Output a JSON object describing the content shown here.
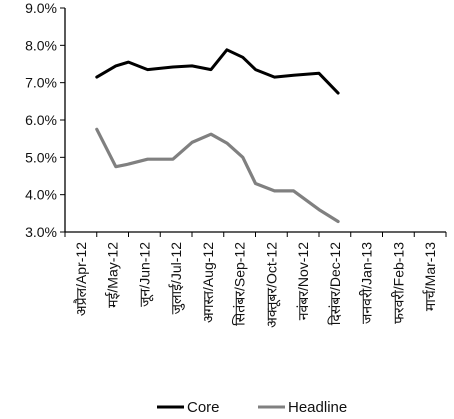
{
  "chart_data": {
    "type": "line",
    "categories": [
      "अप्रैल/Apr-12",
      "मई/May-12",
      "जून/Jun-12",
      "जुलाई/Jul-12",
      "अगस्त/Aug-12",
      "सितंबर/Sep-12",
      "अक्तूबर/Oct-12",
      "नवंबर/Nov-12",
      "दिसंबर/Dec-12",
      "जनवरी/Jan-13",
      "फरवरी/Feb-13",
      "मार्च/Mar-13"
    ],
    "series": [
      {
        "name": "Core",
        "color": "#000000",
        "points": [
          {
            "x": 1.0,
            "y": 7.15
          },
          {
            "x": 1.6,
            "y": 7.45
          },
          {
            "x": 2.0,
            "y": 7.55
          },
          {
            "x": 2.6,
            "y": 7.35
          },
          {
            "x": 3.4,
            "y": 7.42
          },
          {
            "x": 4.0,
            "y": 7.45
          },
          {
            "x": 4.6,
            "y": 7.35
          },
          {
            "x": 5.1,
            "y": 7.88
          },
          {
            "x": 5.6,
            "y": 7.68
          },
          {
            "x": 6.0,
            "y": 7.35
          },
          {
            "x": 6.6,
            "y": 7.15
          },
          {
            "x": 7.2,
            "y": 7.2
          },
          {
            "x": 8.0,
            "y": 7.25
          },
          {
            "x": 8.6,
            "y": 6.72
          }
        ]
      },
      {
        "name": "Headline",
        "color": "#808080",
        "points": [
          {
            "x": 1.0,
            "y": 5.75
          },
          {
            "x": 1.6,
            "y": 4.75
          },
          {
            "x": 2.0,
            "y": 4.82
          },
          {
            "x": 2.6,
            "y": 4.95
          },
          {
            "x": 3.4,
            "y": 4.95
          },
          {
            "x": 4.0,
            "y": 5.4
          },
          {
            "x": 4.6,
            "y": 5.62
          },
          {
            "x": 5.1,
            "y": 5.38
          },
          {
            "x": 5.6,
            "y": 5.0
          },
          {
            "x": 6.0,
            "y": 4.3
          },
          {
            "x": 6.6,
            "y": 4.1
          },
          {
            "x": 7.2,
            "y": 4.1
          },
          {
            "x": 8.0,
            "y": 3.6
          },
          {
            "x": 8.6,
            "y": 3.28
          }
        ]
      }
    ],
    "y_ticks": [
      "3.0%",
      "4.0%",
      "5.0%",
      "6.0%",
      "7.0%",
      "8.0%",
      "9.0%"
    ],
    "ylim": [
      3.0,
      9.0
    ],
    "xlim": [
      0,
      12
    ],
    "grid": false,
    "legend_position": "bottom"
  }
}
